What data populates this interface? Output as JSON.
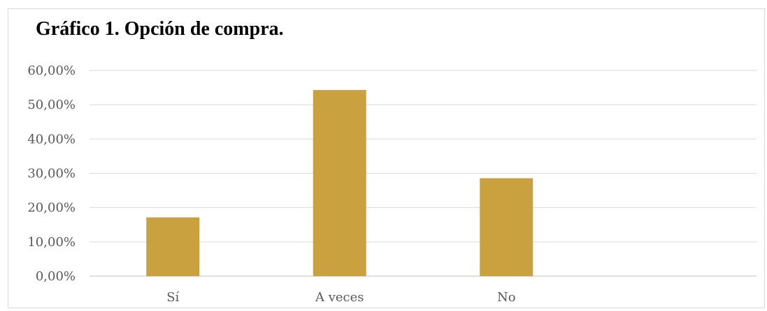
{
  "chart_data": {
    "type": "bar",
    "title": "Gráfico 1. Opción de compra.",
    "categories": [
      "Sí",
      "A veces",
      "No"
    ],
    "values": [
      17.14,
      54.29,
      28.57
    ],
    "y_tick_labels": [
      "0,00%",
      "10,00%",
      "20,00%",
      "30,00%",
      "40,00%",
      "50,00%",
      "60,00%"
    ],
    "ylim": [
      0,
      60
    ],
    "ystep": 10,
    "grid": true,
    "bar_color": "#C9A23F",
    "grid_color": "#D9D9D9",
    "axis_color": "#BFBFBF"
  }
}
